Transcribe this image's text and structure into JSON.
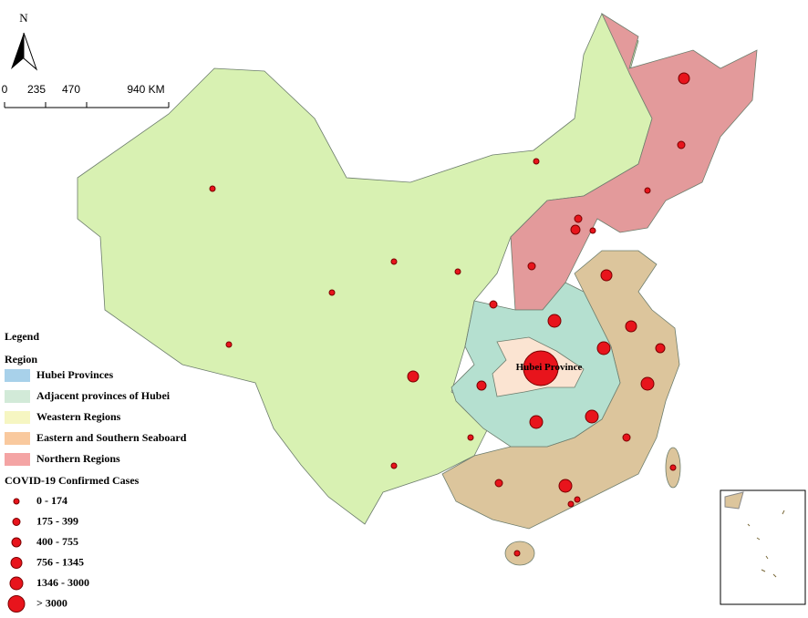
{
  "north": "N",
  "scale": {
    "labels": [
      "0",
      "235",
      "470",
      "940 KM"
    ]
  },
  "legend": {
    "title": "Legend",
    "region_title": "Region",
    "regions": [
      {
        "label": "Hubei Provinces",
        "legend_color": "#a8d1ea",
        "map_color": "#fbe4d2"
      },
      {
        "label": "Adjacent provinces of Hubei",
        "legend_color": "#d2ead8",
        "map_color": "#b5e0d0"
      },
      {
        "label": "Weastern Regions",
        "legend_color": "#f6f6c2",
        "map_color": "#d8f1b2"
      },
      {
        "label": "Eastern and Southern Seaboard",
        "legend_color": "#f9c99e",
        "map_color": "#dcc59c"
      },
      {
        "label": "Northern Regions",
        "legend_color": "#f4a4a4",
        "map_color": "#e39a9b"
      }
    ],
    "cases_title": "COVID-19 Confirmed Cases",
    "cases_classes": [
      "0 - 174",
      "175 - 399",
      "400 - 755",
      "756 - 1345",
      "1346 - 3000",
      "> 3000"
    ]
  },
  "map_labels": {
    "hubei": "Hubei Province"
  }
}
